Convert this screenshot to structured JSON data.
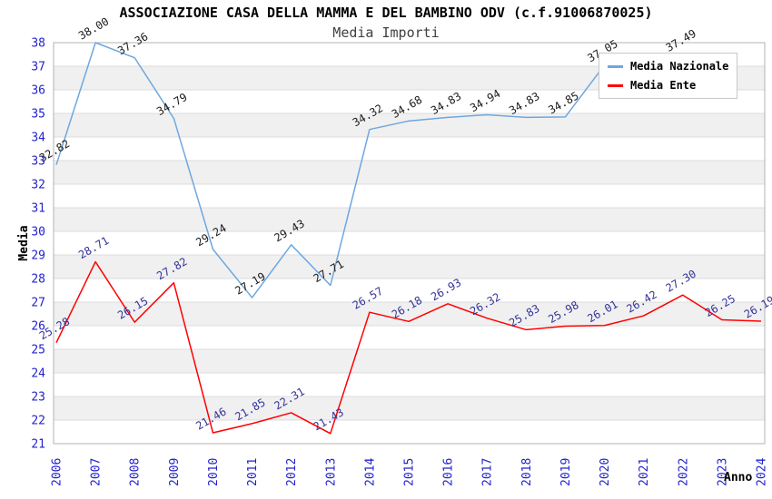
{
  "title": "ASSOCIAZIONE CASA DELLA MAMMA E DEL BAMBINO ODV (c.f.91006870025)",
  "subtitle": "Media Importi",
  "legend": {
    "position": "top-right",
    "items": [
      {
        "label": "Media Nazionale",
        "color": "#6EA7DF"
      },
      {
        "label": "Media Ente",
        "color": "#FF0000"
      }
    ]
  },
  "chart_data": {
    "type": "line",
    "title": "ASSOCIAZIONE CASA DELLA MAMMA E DEL BAMBINO ODV (c.f.91006870025)",
    "subtitle": "Media Importi",
    "xlabel": "Anno",
    "ylabel": "Media",
    "ylim": [
      21,
      38
    ],
    "yticks": [
      21,
      22,
      23,
      24,
      25,
      26,
      27,
      28,
      29,
      30,
      31,
      32,
      33,
      34,
      35,
      36,
      37,
      38
    ],
    "x": [
      2006,
      2007,
      2008,
      2009,
      2010,
      2011,
      2012,
      2013,
      2014,
      2015,
      2016,
      2017,
      2018,
      2019,
      2020,
      2021,
      2022,
      2023,
      2024
    ],
    "series": [
      {
        "name": "Media Nazionale",
        "color": "#6EA7DF",
        "label_color": "#1a1a1a",
        "values": [
          32.82,
          38.0,
          37.36,
          34.79,
          29.24,
          27.19,
          29.43,
          27.71,
          34.32,
          34.68,
          34.83,
          34.94,
          34.83,
          34.85,
          37.05,
          null,
          37.49,
          null,
          null
        ]
      },
      {
        "name": "Media Ente",
        "color": "#FF0000",
        "label_color": "#333399",
        "values": [
          25.28,
          28.71,
          26.15,
          27.82,
          21.46,
          21.85,
          22.31,
          21.43,
          26.57,
          26.18,
          26.93,
          26.32,
          25.83,
          25.98,
          26.01,
          26.42,
          27.3,
          26.25,
          26.19
        ]
      }
    ],
    "grid": true,
    "legend_position": "top-right",
    "plot_style": {
      "band_colors": [
        "#ffffff",
        "#f0f0f0"
      ],
      "gridline_color": "#dcdcdc",
      "frame_color": "#b3b3b3",
      "tick_label_color": "#2222cc"
    }
  }
}
